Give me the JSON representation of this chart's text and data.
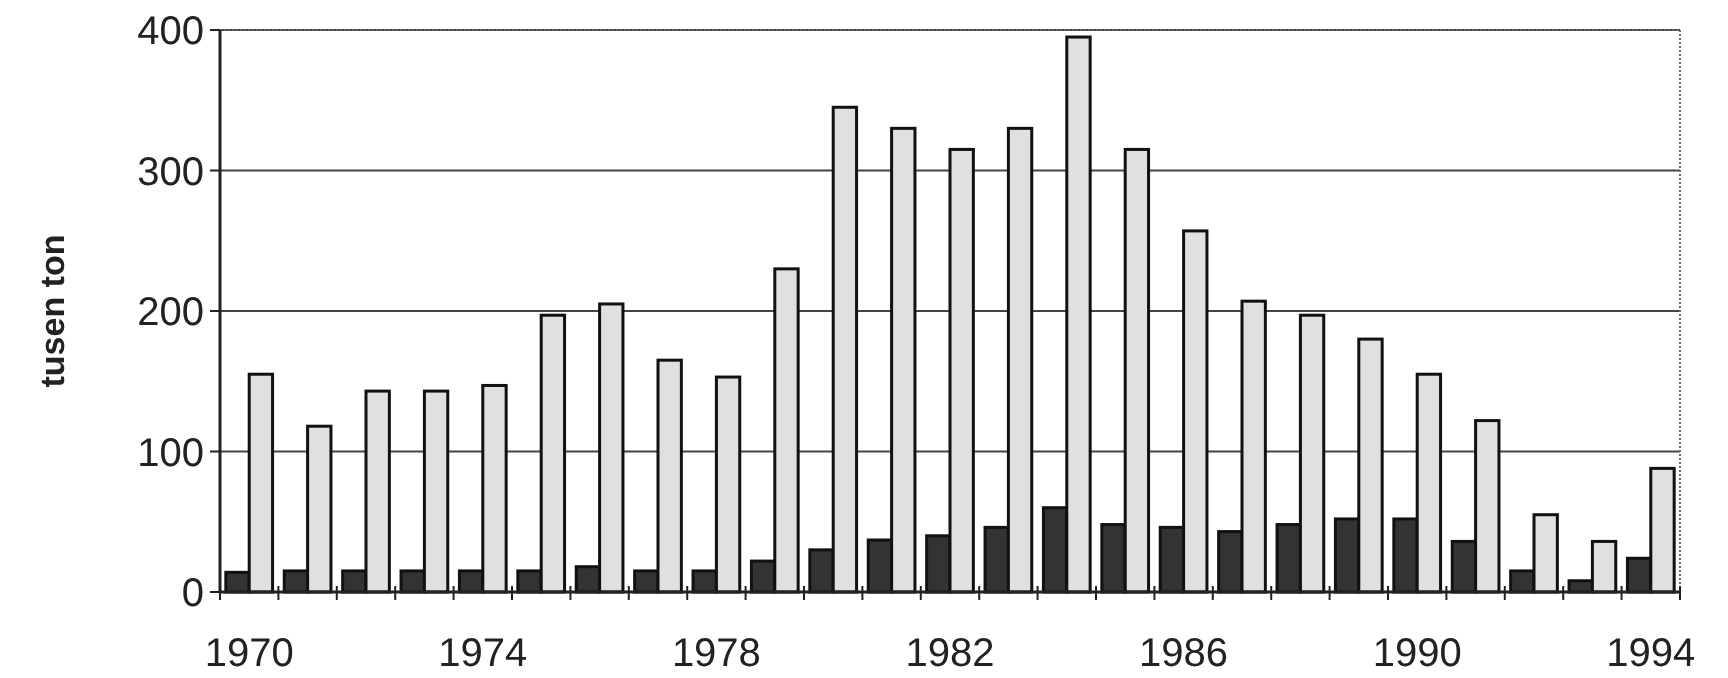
{
  "chart_data": {
    "type": "bar",
    "ylabel": "tusen ton",
    "categories": [
      "1970",
      null,
      null,
      null,
      "1974",
      null,
      null,
      null,
      "1978",
      null,
      null,
      null,
      "1982",
      null,
      null,
      null,
      "1986",
      null,
      null,
      null,
      "1990",
      null,
      null,
      null,
      "1994"
    ],
    "series": [
      {
        "color": "#333333",
        "values": [
          14,
          15,
          15,
          15,
          15,
          15,
          18,
          15,
          15,
          22,
          30,
          37,
          40,
          46,
          60,
          48,
          46,
          43,
          48,
          52,
          52,
          36,
          15,
          8,
          24
        ]
      },
      {
        "color": "#e0e0e0",
        "values": [
          155,
          118,
          143,
          143,
          147,
          197,
          205,
          165,
          153,
          230,
          345,
          330,
          315,
          330,
          395,
          315,
          257,
          207,
          197,
          180,
          155,
          122,
          55,
          36,
          88
        ]
      }
    ],
    "ylim": [
      0,
      400
    ],
    "yticks": [
      0,
      100,
      200,
      300,
      400
    ],
    "grid": "y"
  }
}
